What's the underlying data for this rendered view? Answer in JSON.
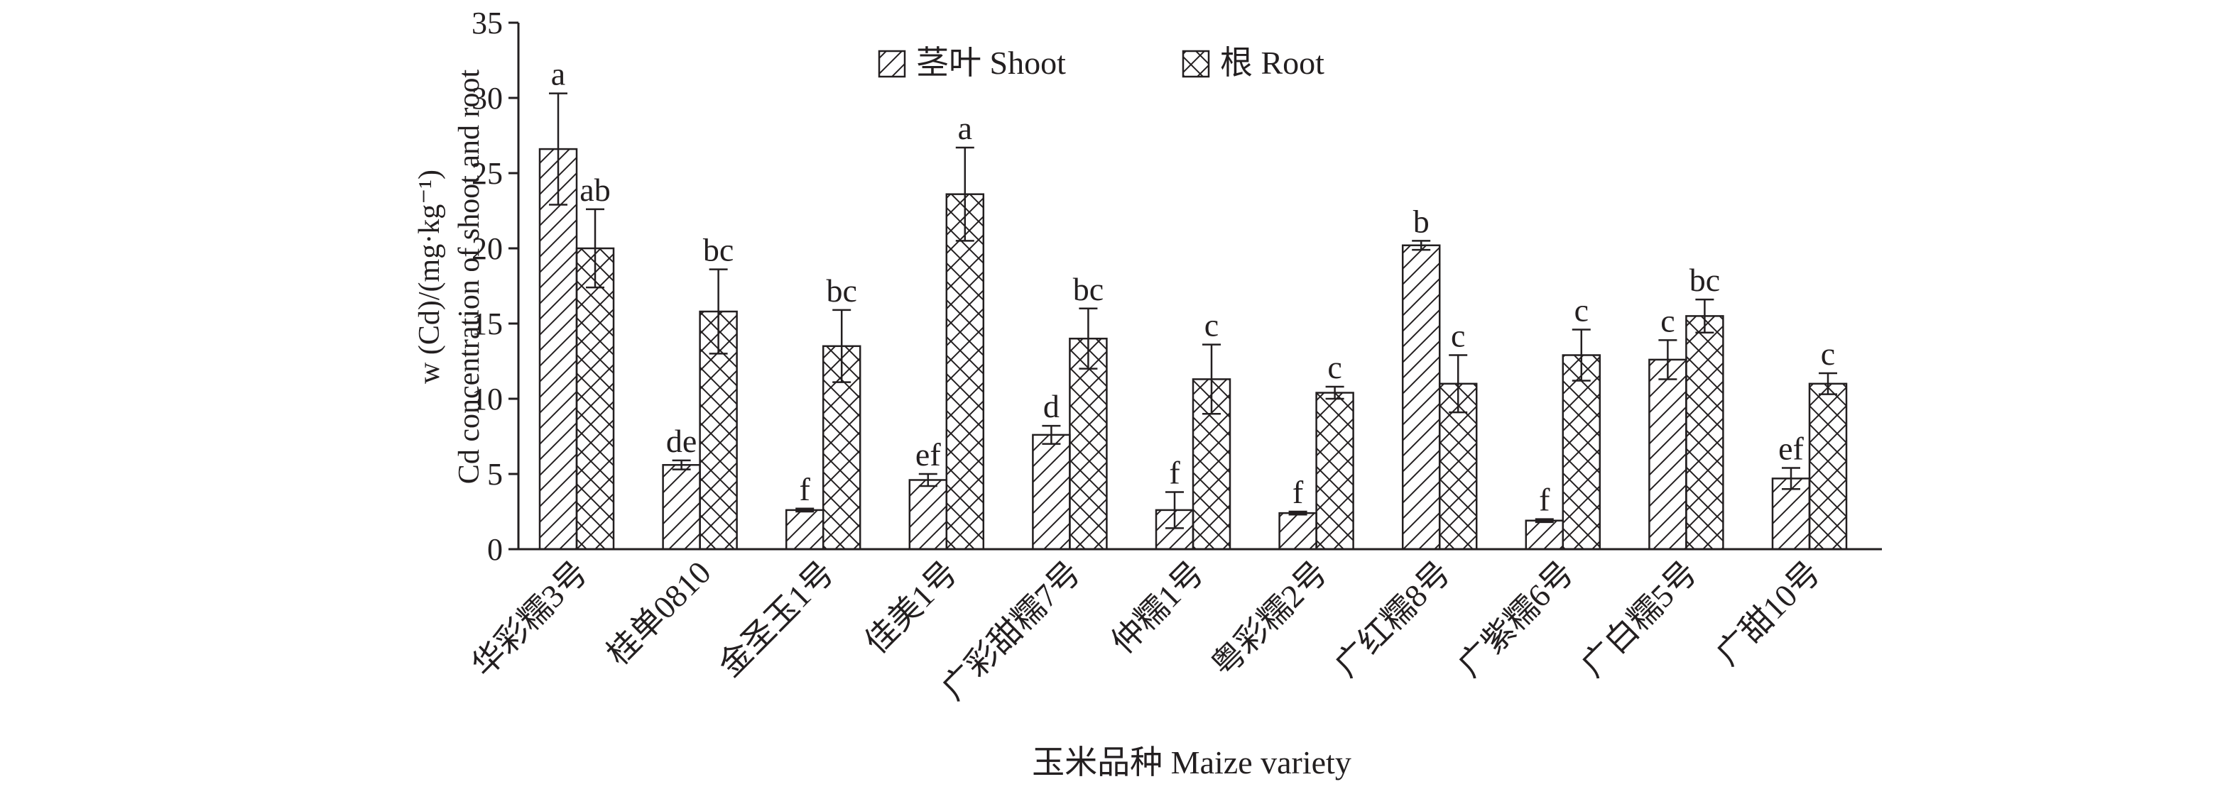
{
  "chart_data": {
    "type": "bar",
    "title": "",
    "ylabel_line1": "w (Cd)/(mg·kg⁻¹)",
    "ylabel_line2": "Cd concentration of shoot and root",
    "xlabel": "玉米品种 Maize variety",
    "ylim": [
      0,
      35
    ],
    "yticks": [
      0,
      5,
      10,
      15,
      20,
      25,
      30,
      35
    ],
    "legend_position": "top-center",
    "categories": [
      "华彩糯3号",
      "桂单0810",
      "金圣玉1号",
      "佳美1号",
      "广彩甜糯7号",
      "仲糯1号",
      "粤彩糯2号",
      "广红糯8号",
      "广紫糯6号",
      "广白糯5号",
      "广甜10号"
    ],
    "series": [
      {
        "name": "茎叶 Shoot",
        "pattern": "diagonal",
        "values": [
          26.6,
          5.6,
          2.6,
          4.6,
          7.6,
          2.6,
          2.4,
          20.2,
          1.9,
          12.6,
          4.7
        ],
        "errors": [
          3.7,
          0.3,
          0.1,
          0.4,
          0.6,
          1.2,
          0.1,
          0.3,
          0.1,
          1.3,
          0.7
        ],
        "labels": [
          "a",
          "de",
          "f",
          "ef",
          "d",
          "f",
          "f",
          "b",
          "f",
          "c",
          "ef"
        ]
      },
      {
        "name": "根 Root",
        "pattern": "crosshatch",
        "values": [
          20.0,
          15.8,
          13.5,
          23.6,
          14.0,
          11.3,
          10.4,
          11.0,
          12.9,
          15.5,
          11.0
        ],
        "errors": [
          2.6,
          2.8,
          2.4,
          3.1,
          2.0,
          2.3,
          0.4,
          1.9,
          1.7,
          1.1,
          0.7
        ],
        "labels": [
          "ab",
          "bc",
          "bc",
          "a",
          "bc",
          "c",
          "c",
          "c",
          "c",
          "bc",
          "c"
        ]
      }
    ],
    "colors": {
      "ink": "#231f20",
      "background": "#ffffff"
    }
  }
}
